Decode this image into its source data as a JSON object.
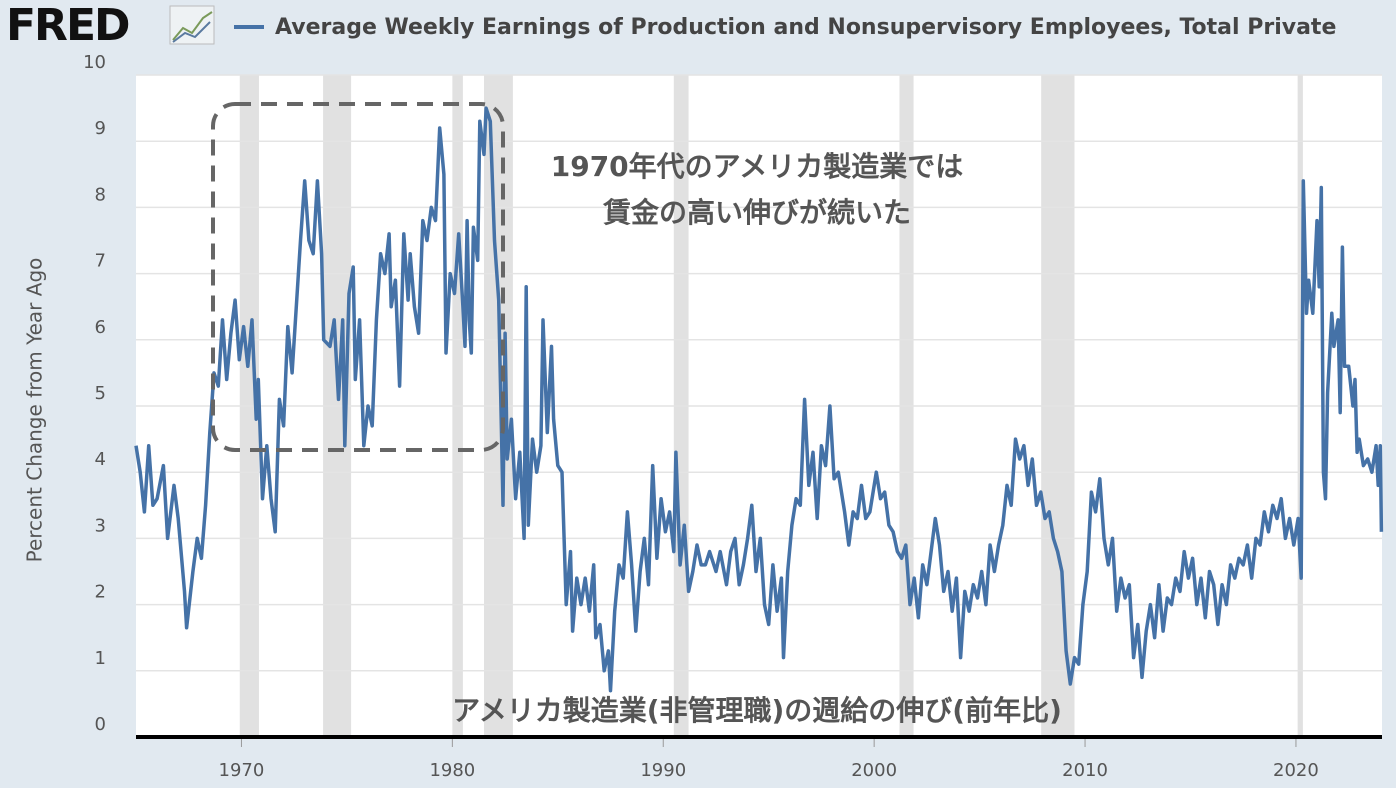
{
  "chart_data": {
    "type": "line",
    "logo": "FRED",
    "title": "Average Weekly Earnings of Production and Nonsupervisory Employees, Total Private",
    "y_label": "Percent Change from Year Ago",
    "annotations": [
      "1970年代のアメリカ製造業では",
      "賃金の高い伸びが続いた",
      "アメリカ製造業(非管理職)の週給の伸び(前年比)"
    ],
    "color": "#4572a7",
    "recession_color": "#e1e1e1",
    "recessions": [
      [
        1969.92,
        1970.83
      ],
      [
        1973.87,
        1975.2
      ],
      [
        1980.0,
        1980.5
      ],
      [
        1981.5,
        1982.87
      ],
      [
        1990.5,
        1991.2
      ],
      [
        2001.2,
        2001.87
      ],
      [
        2007.92,
        2009.5
      ],
      [
        2020.08,
        2020.33
      ]
    ],
    "xlim": [
      1965,
      2024.08
    ],
    "ylim": [
      0,
      10
    ],
    "xticks": [
      1970,
      1980,
      1990,
      2000,
      2010,
      2020
    ],
    "yticks": [
      0,
      1,
      2,
      3,
      4,
      5,
      6,
      7,
      8,
      9,
      10
    ],
    "grid": true,
    "x": [
      1965.0,
      1965.2,
      1965.4,
      1965.6,
      1965.8,
      1966.0,
      1966.3,
      1966.5,
      1966.8,
      1967.0,
      1967.3,
      1967.4,
      1967.7,
      1967.9,
      1968.1,
      1968.3,
      1968.5,
      1968.7,
      1968.9,
      1969.1,
      1969.3,
      1969.5,
      1969.7,
      1969.9,
      1970.1,
      1970.3,
      1970.5,
      1970.7,
      1970.8,
      1971.0,
      1971.2,
      1971.4,
      1971.6,
      1971.8,
      1972.0,
      1972.2,
      1972.4,
      1972.6,
      1972.8,
      1973.0,
      1973.2,
      1973.4,
      1973.6,
      1973.8,
      1973.9,
      1974.2,
      1974.4,
      1974.6,
      1974.8,
      1974.9,
      1975.1,
      1975.3,
      1975.4,
      1975.6,
      1975.8,
      1976.0,
      1976.2,
      1976.4,
      1976.6,
      1976.8,
      1977.0,
      1977.1,
      1977.3,
      1977.5,
      1977.7,
      1977.9,
      1978.0,
      1978.2,
      1978.4,
      1978.6,
      1978.8,
      1979.0,
      1979.2,
      1979.4,
      1979.6,
      1979.7,
      1979.9,
      1980.1,
      1980.3,
      1980.5,
      1980.6,
      1980.7,
      1980.8,
      1980.9,
      1981.0,
      1981.2,
      1981.3,
      1981.5,
      1981.6,
      1981.8,
      1982.0,
      1982.2,
      1982.4,
      1982.5,
      1982.6,
      1982.8,
      1983.0,
      1983.2,
      1983.4,
      1983.5,
      1983.6,
      1983.8,
      1984.0,
      1984.2,
      1984.3,
      1984.5,
      1984.7,
      1984.8,
      1985.0,
      1985.2,
      1985.4,
      1985.6,
      1985.7,
      1985.9,
      1986.1,
      1986.3,
      1986.5,
      1986.7,
      1986.8,
      1987.0,
      1987.2,
      1987.4,
      1987.5,
      1987.7,
      1987.9,
      1988.1,
      1988.3,
      1988.5,
      1988.7,
      1988.9,
      1989.1,
      1989.3,
      1989.5,
      1989.7,
      1989.9,
      1990.1,
      1990.3,
      1990.5,
      1990.6,
      1990.8,
      1991.0,
      1991.2,
      1991.4,
      1991.6,
      1991.8,
      1992.0,
      1992.2,
      1992.5,
      1992.7,
      1993.0,
      1993.2,
      1993.4,
      1993.6,
      1993.8,
      1994.0,
      1994.2,
      1994.4,
      1994.6,
      1994.8,
      1995.0,
      1995.2,
      1995.4,
      1995.6,
      1995.7,
      1995.9,
      1996.1,
      1996.3,
      1996.5,
      1996.7,
      1996.9,
      1997.1,
      1997.3,
      1997.5,
      1997.7,
      1997.9,
      1998.1,
      1998.3,
      1998.6,
      1998.8,
      1999.0,
      1999.2,
      1999.4,
      1999.6,
      1999.8,
      2000.1,
      2000.3,
      2000.5,
      2000.7,
      2000.9,
      2001.1,
      2001.3,
      2001.5,
      2001.7,
      2001.9,
      2002.1,
      2002.3,
      2002.5,
      2002.7,
      2002.9,
      2003.1,
      2003.3,
      2003.5,
      2003.7,
      2003.9,
      2004.1,
      2004.3,
      2004.5,
      2004.7,
      2004.9,
      2005.1,
      2005.3,
      2005.5,
      2005.7,
      2005.9,
      2006.1,
      2006.3,
      2006.5,
      2006.7,
      2006.9,
      2007.1,
      2007.3,
      2007.5,
      2007.7,
      2007.9,
      2008.1,
      2008.3,
      2008.5,
      2008.7,
      2008.9,
      2009.1,
      2009.3,
      2009.5,
      2009.7,
      2009.9,
      2010.1,
      2010.3,
      2010.5,
      2010.7,
      2010.9,
      2011.1,
      2011.3,
      2011.5,
      2011.7,
      2011.9,
      2012.1,
      2012.3,
      2012.5,
      2012.7,
      2012.9,
      2013.1,
      2013.3,
      2013.5,
      2013.7,
      2013.9,
      2014.1,
      2014.3,
      2014.5,
      2014.7,
      2014.9,
      2015.1,
      2015.3,
      2015.5,
      2015.7,
      2015.9,
      2016.1,
      2016.3,
      2016.5,
      2016.7,
      2016.9,
      2017.1,
      2017.3,
      2017.5,
      2017.7,
      2017.9,
      2018.1,
      2018.3,
      2018.5,
      2018.7,
      2018.9,
      2019.1,
      2019.3,
      2019.5,
      2019.7,
      2019.9,
      2020.1,
      2020.25,
      2020.35,
      2020.5,
      2020.6,
      2020.8,
      2021.0,
      2021.1,
      2021.2,
      2021.3,
      2021.4,
      2021.5,
      2021.7,
      2021.8,
      2022.0,
      2022.1,
      2022.2,
      2022.3,
      2022.5,
      2022.6,
      2022.7,
      2022.8,
      2022.9,
      2023.0,
      2023.2,
      2023.4,
      2023.6,
      2023.8,
      2023.9,
      2024.0,
      2024.05
    ],
    "values": [
      4.4,
      4.0,
      3.4,
      4.4,
      3.5,
      3.6,
      4.1,
      3.0,
      3.8,
      3.3,
      2.2,
      1.65,
      2.5,
      3.0,
      2.7,
      3.5,
      4.6,
      5.5,
      5.3,
      6.3,
      5.4,
      6.1,
      6.6,
      5.7,
      6.2,
      5.6,
      6.3,
      4.8,
      5.4,
      3.6,
      4.4,
      3.6,
      3.1,
      5.1,
      4.7,
      6.2,
      5.5,
      6.5,
      7.5,
      8.4,
      7.5,
      7.3,
      8.4,
      7.3,
      6.0,
      5.9,
      6.3,
      5.1,
      6.3,
      4.4,
      6.7,
      7.1,
      5.4,
      6.3,
      4.4,
      5.0,
      4.7,
      6.3,
      7.3,
      7.0,
      7.6,
      6.5,
      6.9,
      5.3,
      7.6,
      6.6,
      7.3,
      6.5,
      6.1,
      7.8,
      7.5,
      8.0,
      7.8,
      9.2,
      8.5,
      5.8,
      7.0,
      6.7,
      7.6,
      6.5,
      5.9,
      7.8,
      6.3,
      5.8,
      7.7,
      7.2,
      9.3,
      8.8,
      9.5,
      9.3,
      7.5,
      6.6,
      3.5,
      6.1,
      4.2,
      4.8,
      3.6,
      4.3,
      3.0,
      6.8,
      3.2,
      4.5,
      4.0,
      4.4,
      6.3,
      4.6,
      5.9,
      4.8,
      4.1,
      4.0,
      2.0,
      2.8,
      1.6,
      2.4,
      2.0,
      2.4,
      1.9,
      2.6,
      1.5,
      1.7,
      1.0,
      1.3,
      0.7,
      1.9,
      2.6,
      2.4,
      3.4,
      2.6,
      1.6,
      2.5,
      3.0,
      2.3,
      4.1,
      2.7,
      3.6,
      3.1,
      3.4,
      2.8,
      4.3,
      2.6,
      3.2,
      2.2,
      2.5,
      2.9,
      2.6,
      2.6,
      2.8,
      2.5,
      2.8,
      2.3,
      2.8,
      3.0,
      2.3,
      2.6,
      3.0,
      3.5,
      2.5,
      3.0,
      2.0,
      1.7,
      2.6,
      1.9,
      2.4,
      1.2,
      2.5,
      3.2,
      3.6,
      3.5,
      5.1,
      3.8,
      4.3,
      3.3,
      4.4,
      4.1,
      5.0,
      3.9,
      4.0,
      3.4,
      2.9,
      3.4,
      3.3,
      3.8,
      3.3,
      3.4,
      4.0,
      3.6,
      3.7,
      3.2,
      3.1,
      2.8,
      2.7,
      2.9,
      2.0,
      2.4,
      1.8,
      2.6,
      2.3,
      2.8,
      3.3,
      2.9,
      2.2,
      2.5,
      1.9,
      2.4,
      1.2,
      2.2,
      1.9,
      2.3,
      2.1,
      2.5,
      2.0,
      2.9,
      2.5,
      2.9,
      3.2,
      3.8,
      3.5,
      4.5,
      4.2,
      4.4,
      3.8,
      4.2,
      3.5,
      3.7,
      3.3,
      3.4,
      3.0,
      2.8,
      2.5,
      1.3,
      0.8,
      1.2,
      1.1,
      2.0,
      2.5,
      3.7,
      3.4,
      3.9,
      3.0,
      2.6,
      3.0,
      1.9,
      2.4,
      2.1,
      2.3,
      1.2,
      1.7,
      0.9,
      1.6,
      2.0,
      1.5,
      2.3,
      1.6,
      2.1,
      2.0,
      2.4,
      2.2,
      2.8,
      2.4,
      2.7,
      2.0,
      2.4,
      1.8,
      2.5,
      2.3,
      1.7,
      2.3,
      2.0,
      2.6,
      2.4,
      2.7,
      2.6,
      2.9,
      2.4,
      3.0,
      2.9,
      3.4,
      3.1,
      3.5,
      3.3,
      3.6,
      3.0,
      3.3,
      2.9,
      3.3,
      2.4,
      8.4,
      6.4,
      6.9,
      6.4,
      7.8,
      6.8,
      8.3,
      4.0,
      3.6,
      5.2,
      6.4,
      5.9,
      6.3,
      4.9,
      7.4,
      5.6,
      5.6,
      5.3,
      5.0,
      5.4,
      4.3,
      4.5,
      4.1,
      4.2,
      4.0,
      4.4,
      3.8,
      4.4,
      3.1
    ]
  }
}
